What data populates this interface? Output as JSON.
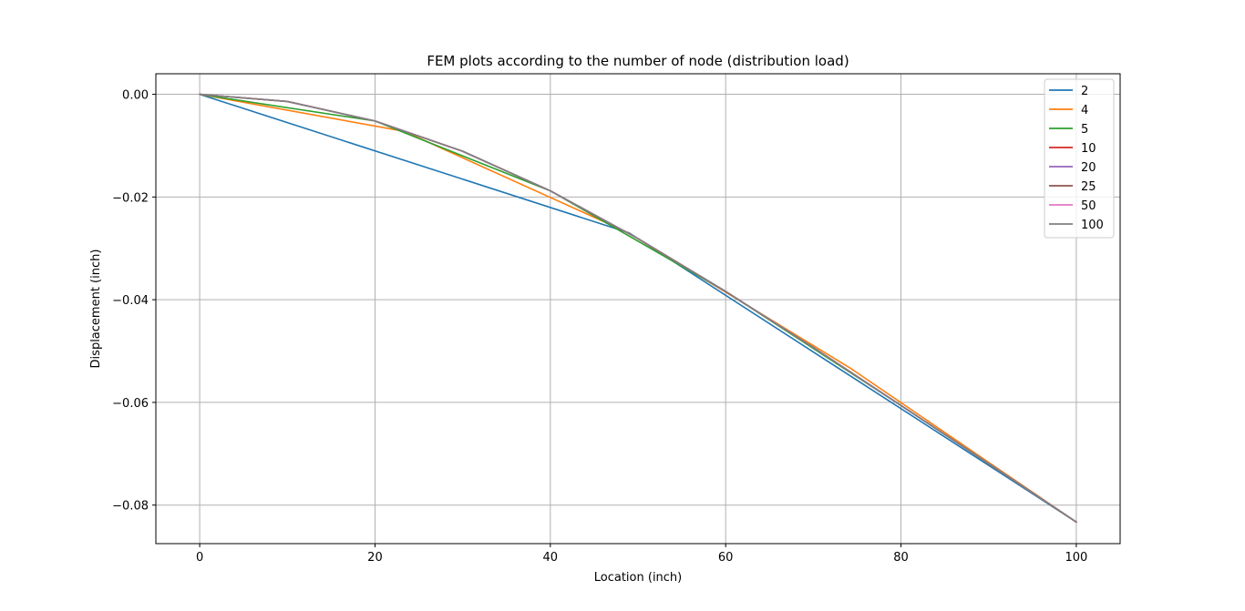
{
  "chart_data": {
    "type": "line",
    "title": "FEM plots according to the number of node (distribution load)",
    "xlabel": "Location (inch)",
    "ylabel": "Displacement (inch)",
    "xlim": [
      -5,
      105
    ],
    "ylim": [
      -0.0875,
      0.004
    ],
    "xticks": [
      0,
      20,
      40,
      60,
      80,
      100
    ],
    "xtick_labels": [
      "0",
      "20",
      "40",
      "60",
      "80",
      "100"
    ],
    "yticks": [
      0,
      -0.02,
      -0.04,
      -0.06,
      -0.08
    ],
    "ytick_labels": [
      "0.00",
      "−0.02",
      "−0.04",
      "−0.06",
      "−0.08"
    ],
    "grid": true,
    "legend_position": "top-right",
    "series": [
      {
        "name": "2",
        "color": "#1f77b4",
        "x": [
          0,
          49,
          100
        ],
        "y": [
          0,
          -0.027,
          -0.0833
        ]
      },
      {
        "name": "4",
        "color": "#ff7f0e",
        "x": [
          0,
          23.3,
          48.7,
          74.2,
          100
        ],
        "y": [
          0,
          -0.0072,
          -0.0268,
          -0.0533,
          -0.0833
        ]
      },
      {
        "name": "5",
        "color": "#2ca02c",
        "x": [
          0,
          20,
          40,
          60,
          80,
          100
        ],
        "y": [
          0,
          -0.0052,
          -0.0188,
          -0.0384,
          -0.0606,
          -0.0833
        ]
      },
      {
        "name": "10",
        "color": "#d62728",
        "x": [
          0,
          10,
          20,
          30,
          40,
          50,
          60,
          70,
          80,
          90,
          100
        ],
        "y": [
          0,
          -0.0014,
          -0.0052,
          -0.0111,
          -0.0188,
          -0.0281,
          -0.0384,
          -0.0493,
          -0.0606,
          -0.0719,
          -0.0833
        ]
      },
      {
        "name": "20",
        "color": "#9467bd",
        "x": [
          0,
          10,
          20,
          30,
          40,
          50,
          60,
          70,
          80,
          90,
          100
        ],
        "y": [
          0,
          -0.0014,
          -0.0052,
          -0.0111,
          -0.0188,
          -0.0281,
          -0.0384,
          -0.0493,
          -0.0606,
          -0.0719,
          -0.0833
        ]
      },
      {
        "name": "25",
        "color": "#8c564b",
        "x": [
          0,
          10,
          20,
          30,
          40,
          50,
          60,
          70,
          80,
          90,
          100
        ],
        "y": [
          0,
          -0.0014,
          -0.0052,
          -0.0111,
          -0.0188,
          -0.0281,
          -0.0384,
          -0.0493,
          -0.0606,
          -0.0719,
          -0.0833
        ]
      },
      {
        "name": "50",
        "color": "#e377c2",
        "x": [
          0,
          10,
          20,
          30,
          40,
          50,
          60,
          70,
          80,
          90,
          100
        ],
        "y": [
          0,
          -0.0014,
          -0.0052,
          -0.0111,
          -0.0188,
          -0.0281,
          -0.0384,
          -0.0493,
          -0.0606,
          -0.0719,
          -0.0833
        ]
      },
      {
        "name": "100",
        "color": "#7f7f7f",
        "x": [
          0,
          10,
          20,
          30,
          40,
          50,
          60,
          70,
          80,
          90,
          100
        ],
        "y": [
          0,
          -0.0014,
          -0.0052,
          -0.0111,
          -0.0188,
          -0.0281,
          -0.0384,
          -0.0493,
          -0.0606,
          -0.0719,
          -0.0833
        ]
      }
    ]
  }
}
